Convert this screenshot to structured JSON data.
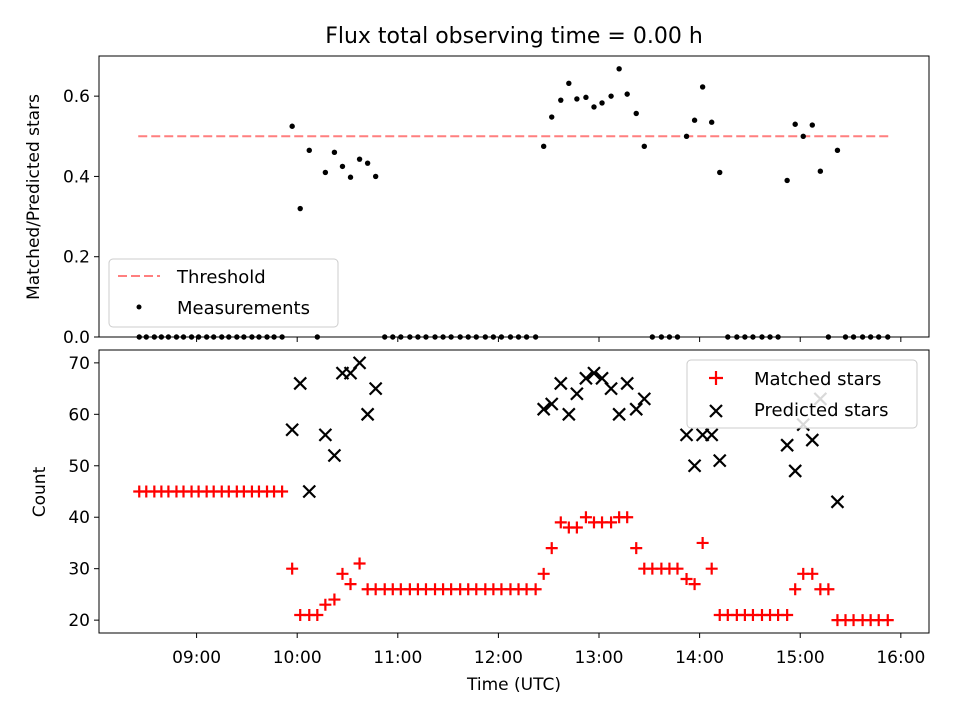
{
  "title": "Flux total observing time = 0.00 h",
  "colors": {
    "threshold": "#ff7f7f",
    "measurements": "#000000",
    "matched": "#ff0000",
    "predicted": "#000000"
  },
  "chart_data": [
    {
      "type": "scatter",
      "ylabel": "Matched/Predicted stars",
      "ylim": [
        0,
        0.7
      ],
      "yticks": [
        "0.0",
        "0.2",
        "0.4",
        "0.6"
      ],
      "xlim_hours": [
        8.03,
        16.28
      ],
      "xticks": [
        "09:00",
        "10:00",
        "11:00",
        "12:00",
        "13:00",
        "14:00",
        "15:00",
        "16:00"
      ],
      "grid": false,
      "legend": {
        "position": "lower-left",
        "entries": [
          "Threshold",
          "Measurements"
        ]
      },
      "threshold": {
        "name": "Threshold",
        "y": 0.5,
        "x": [
          8.42,
          15.9
        ]
      },
      "series": [
        {
          "name": "Measurements",
          "points": [
            [
              8.43,
              0
            ],
            [
              8.5,
              0
            ],
            [
              8.58,
              0
            ],
            [
              8.65,
              0
            ],
            [
              8.72,
              0
            ],
            [
              8.8,
              0
            ],
            [
              8.87,
              0
            ],
            [
              8.95,
              0
            ],
            [
              9.02,
              0
            ],
            [
              9.1,
              0
            ],
            [
              9.17,
              0
            ],
            [
              9.25,
              0
            ],
            [
              9.32,
              0
            ],
            [
              9.4,
              0
            ],
            [
              9.47,
              0
            ],
            [
              9.55,
              0
            ],
            [
              9.62,
              0
            ],
            [
              9.7,
              0
            ],
            [
              9.77,
              0
            ],
            [
              9.85,
              0
            ],
            [
              9.95,
              0.525
            ],
            [
              10.03,
              0.32
            ],
            [
              10.12,
              0.465
            ],
            [
              10.2,
              0
            ],
            [
              10.28,
              0.41
            ],
            [
              10.37,
              0.46
            ],
            [
              10.45,
              0.425
            ],
            [
              10.53,
              0.398
            ],
            [
              10.62,
              0.443
            ],
            [
              10.7,
              0.433
            ],
            [
              10.78,
              0.4
            ],
            [
              10.87,
              0
            ],
            [
              10.95,
              0
            ],
            [
              11.03,
              0
            ],
            [
              11.12,
              0
            ],
            [
              11.2,
              0
            ],
            [
              11.28,
              0
            ],
            [
              11.37,
              0
            ],
            [
              11.45,
              0
            ],
            [
              11.53,
              0
            ],
            [
              11.62,
              0
            ],
            [
              11.7,
              0
            ],
            [
              11.78,
              0
            ],
            [
              11.87,
              0
            ],
            [
              11.95,
              0
            ],
            [
              12.03,
              0
            ],
            [
              12.12,
              0
            ],
            [
              12.2,
              0
            ],
            [
              12.28,
              0
            ],
            [
              12.37,
              0
            ],
            [
              12.45,
              0.475
            ],
            [
              12.53,
              0.548
            ],
            [
              12.62,
              0.59
            ],
            [
              12.7,
              0.632
            ],
            [
              12.78,
              0.593
            ],
            [
              12.87,
              0.597
            ],
            [
              12.95,
              0.573
            ],
            [
              13.03,
              0.583
            ],
            [
              13.12,
              0.6
            ],
            [
              13.2,
              0.668
            ],
            [
              13.28,
              0.605
            ],
            [
              13.37,
              0.557
            ],
            [
              13.45,
              0.475
            ],
            [
              13.53,
              0
            ],
            [
              13.62,
              0
            ],
            [
              13.7,
              0
            ],
            [
              13.78,
              0
            ],
            [
              13.87,
              0.5
            ],
            [
              13.95,
              0.54
            ],
            [
              14.03,
              0.623
            ],
            [
              14.12,
              0.535
            ],
            [
              14.2,
              0.41
            ],
            [
              14.28,
              0
            ],
            [
              14.37,
              0
            ],
            [
              14.45,
              0
            ],
            [
              14.53,
              0
            ],
            [
              14.62,
              0
            ],
            [
              14.7,
              0
            ],
            [
              14.78,
              0
            ],
            [
              14.87,
              0.39
            ],
            [
              14.95,
              0.53
            ],
            [
              15.03,
              0.5
            ],
            [
              15.12,
              0.528
            ],
            [
              15.2,
              0.413
            ],
            [
              15.28,
              0
            ],
            [
              15.37,
              0.465
            ],
            [
              15.45,
              0
            ],
            [
              15.53,
              0
            ],
            [
              15.62,
              0
            ],
            [
              15.7,
              0
            ],
            [
              15.78,
              0
            ],
            [
              15.87,
              0
            ]
          ]
        }
      ]
    },
    {
      "type": "scatter",
      "xlabel": "Time (UTC)",
      "ylabel": "Count",
      "ylim": [
        17.5,
        72.5
      ],
      "yticks": [
        "20",
        "30",
        "40",
        "50",
        "60",
        "70"
      ],
      "xlim_hours": [
        8.03,
        16.28
      ],
      "xticks": [
        "09:00",
        "10:00",
        "11:00",
        "12:00",
        "13:00",
        "14:00",
        "15:00",
        "16:00"
      ],
      "grid": false,
      "legend": {
        "position": "upper-right",
        "entries": [
          "Matched stars",
          "Predicted stars"
        ]
      },
      "series": [
        {
          "name": "Matched stars",
          "marker": "plus",
          "points": [
            [
              8.43,
              45
            ],
            [
              8.5,
              45
            ],
            [
              8.58,
              45
            ],
            [
              8.65,
              45
            ],
            [
              8.72,
              45
            ],
            [
              8.8,
              45
            ],
            [
              8.87,
              45
            ],
            [
              8.95,
              45
            ],
            [
              9.02,
              45
            ],
            [
              9.1,
              45
            ],
            [
              9.17,
              45
            ],
            [
              9.25,
              45
            ],
            [
              9.32,
              45
            ],
            [
              9.4,
              45
            ],
            [
              9.47,
              45
            ],
            [
              9.55,
              45
            ],
            [
              9.62,
              45
            ],
            [
              9.7,
              45
            ],
            [
              9.77,
              45
            ],
            [
              9.85,
              45
            ],
            [
              9.95,
              30
            ],
            [
              10.03,
              21
            ],
            [
              10.12,
              21
            ],
            [
              10.2,
              21
            ],
            [
              10.28,
              23
            ],
            [
              10.37,
              24
            ],
            [
              10.45,
              29
            ],
            [
              10.53,
              27
            ],
            [
              10.62,
              31
            ],
            [
              10.7,
              26
            ],
            [
              10.78,
              26
            ],
            [
              10.87,
              26
            ],
            [
              10.95,
              26
            ],
            [
              11.03,
              26
            ],
            [
              11.12,
              26
            ],
            [
              11.2,
              26
            ],
            [
              11.28,
              26
            ],
            [
              11.37,
              26
            ],
            [
              11.45,
              26
            ],
            [
              11.53,
              26
            ],
            [
              11.62,
              26
            ],
            [
              11.7,
              26
            ],
            [
              11.78,
              26
            ],
            [
              11.87,
              26
            ],
            [
              11.95,
              26
            ],
            [
              12.03,
              26
            ],
            [
              12.12,
              26
            ],
            [
              12.2,
              26
            ],
            [
              12.28,
              26
            ],
            [
              12.37,
              26
            ],
            [
              12.45,
              29
            ],
            [
              12.53,
              34
            ],
            [
              12.62,
              39
            ],
            [
              12.7,
              38
            ],
            [
              12.78,
              38
            ],
            [
              12.87,
              40
            ],
            [
              12.95,
              39
            ],
            [
              13.03,
              39
            ],
            [
              13.12,
              39
            ],
            [
              13.2,
              40
            ],
            [
              13.28,
              40
            ],
            [
              13.37,
              34
            ],
            [
              13.45,
              30
            ],
            [
              13.53,
              30
            ],
            [
              13.62,
              30
            ],
            [
              13.7,
              30
            ],
            [
              13.78,
              30
            ],
            [
              13.87,
              28
            ],
            [
              13.95,
              27
            ],
            [
              14.03,
              35
            ],
            [
              14.12,
              30
            ],
            [
              14.2,
              21
            ],
            [
              14.28,
              21
            ],
            [
              14.37,
              21
            ],
            [
              14.45,
              21
            ],
            [
              14.53,
              21
            ],
            [
              14.62,
              21
            ],
            [
              14.7,
              21
            ],
            [
              14.78,
              21
            ],
            [
              14.87,
              21
            ],
            [
              14.95,
              26
            ],
            [
              15.03,
              29
            ],
            [
              15.12,
              29
            ],
            [
              15.2,
              26
            ],
            [
              15.28,
              26
            ],
            [
              15.37,
              20
            ],
            [
              15.45,
              20
            ],
            [
              15.53,
              20
            ],
            [
              15.62,
              20
            ],
            [
              15.7,
              20
            ],
            [
              15.78,
              20
            ],
            [
              15.87,
              20
            ]
          ]
        },
        {
          "name": "Predicted stars",
          "marker": "x",
          "points": [
            [
              9.95,
              57
            ],
            [
              10.03,
              66
            ],
            [
              10.12,
              45
            ],
            [
              10.28,
              56
            ],
            [
              10.37,
              52
            ],
            [
              10.45,
              68
            ],
            [
              10.53,
              68
            ],
            [
              10.62,
              70
            ],
            [
              10.7,
              60
            ],
            [
              10.78,
              65
            ],
            [
              12.45,
              61
            ],
            [
              12.53,
              62
            ],
            [
              12.62,
              66
            ],
            [
              12.7,
              60
            ],
            [
              12.78,
              64
            ],
            [
              12.87,
              67
            ],
            [
              12.95,
              68
            ],
            [
              13.03,
              67
            ],
            [
              13.12,
              65
            ],
            [
              13.2,
              60
            ],
            [
              13.28,
              66
            ],
            [
              13.37,
              61
            ],
            [
              13.45,
              63
            ],
            [
              13.87,
              56
            ],
            [
              13.95,
              50
            ],
            [
              14.03,
              56
            ],
            [
              14.12,
              56
            ],
            [
              14.2,
              51
            ],
            [
              14.87,
              54
            ],
            [
              14.95,
              49
            ],
            [
              15.03,
              58
            ],
            [
              15.12,
              55
            ],
            [
              15.2,
              63
            ],
            [
              15.37,
              43
            ]
          ]
        }
      ]
    }
  ]
}
